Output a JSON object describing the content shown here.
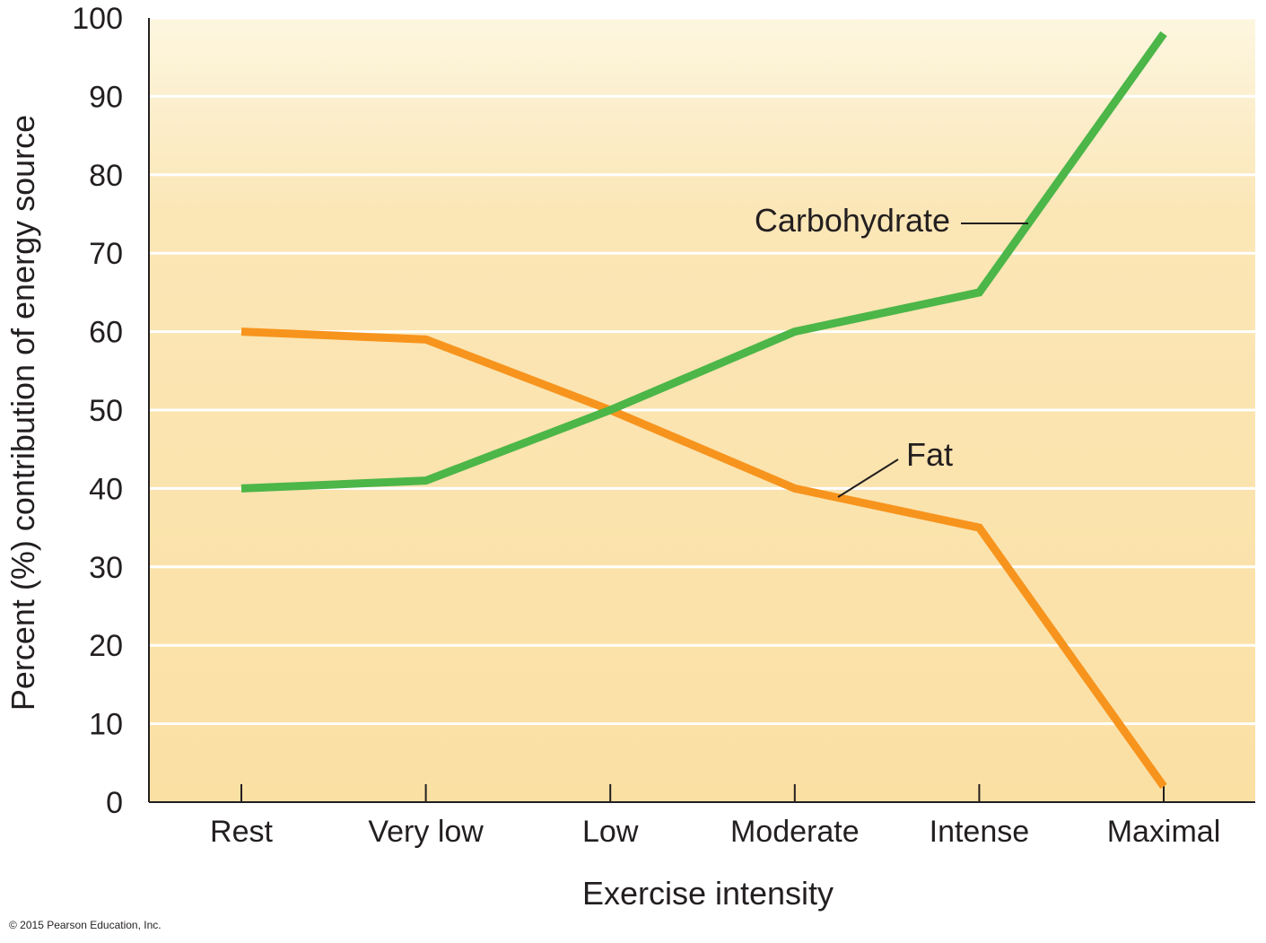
{
  "chart_data": {
    "type": "line",
    "title": "",
    "xlabel": "Exercise intensity",
    "ylabel": "Percent (%) contribution of energy source",
    "categories": [
      "Rest",
      "Very low",
      "Low",
      "Moderate",
      "Intense",
      "Maximal"
    ],
    "ylim": [
      0,
      100
    ],
    "yticks": [
      0,
      10,
      20,
      30,
      40,
      50,
      60,
      70,
      80,
      90,
      100
    ],
    "grid": true,
    "series": [
      {
        "name": "Carbohydrate",
        "values": [
          40,
          41,
          50,
          60,
          65,
          98
        ],
        "color": "#4cb648"
      },
      {
        "name": "Fat",
        "values": [
          60,
          59,
          50,
          40,
          35,
          2
        ],
        "color": "#f7941d"
      }
    ],
    "background_gradient": [
      "#fdf6e0",
      "#fbe0a4"
    ],
    "gridline_color": "#ffffff",
    "copyright": "© 2015 Pearson Education, Inc."
  }
}
